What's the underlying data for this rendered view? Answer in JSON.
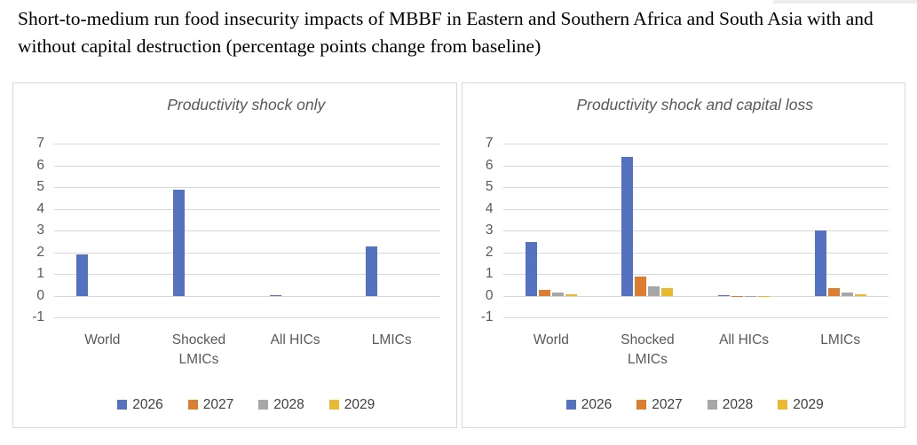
{
  "header": {
    "title": "Short-to-medium run food insecurity impacts of MBBF in Eastern and Southern Africa and South Asia with and without capital destruction (percentage points change from baseline)"
  },
  "colors": {
    "series_2026_blue": "#5572C1",
    "series_2027_orange": "#DD7D2F",
    "series_2028_gray": "#A7A7A7",
    "series_2029_yellow": "#E9B930",
    "gridline": "#D9D9D9",
    "axis_text": "#595959",
    "legend_text": "#404040",
    "panel_border": "#D9D9D9"
  },
  "chart_data": [
    {
      "type": "bar",
      "title": "Productivity shock only",
      "categories": [
        "World",
        "Shocked LMICs",
        "All HICs",
        "LMICs"
      ],
      "series": [
        {
          "name": "2026",
          "color": "#5572C1",
          "values": [
            1.9,
            4.9,
            0.05,
            2.3
          ]
        },
        {
          "name": "2027",
          "color": "#DD7D2F",
          "values": [
            0,
            0,
            0,
            0
          ]
        },
        {
          "name": "2028",
          "color": "#A7A7A7",
          "values": [
            0,
            0,
            0,
            0
          ]
        },
        {
          "name": "2029",
          "color": "#E9B930",
          "values": [
            0,
            0,
            0,
            0
          ]
        }
      ],
      "ylim": [
        -1,
        7
      ],
      "yticks": [
        7,
        6,
        5,
        4,
        3,
        2,
        1,
        0,
        -1
      ],
      "grid": true,
      "legend_position": "bottom"
    },
    {
      "type": "bar",
      "title": "Productivity shock and capital loss",
      "categories": [
        "World",
        "Shocked LMICs",
        "All HICs",
        "LMICs"
      ],
      "series": [
        {
          "name": "2026",
          "color": "#5572C1",
          "values": [
            2.5,
            6.4,
            0.05,
            3.0
          ]
        },
        {
          "name": "2027",
          "color": "#DD7D2F",
          "values": [
            0.3,
            0.9,
            -0.05,
            0.35
          ]
        },
        {
          "name": "2028",
          "color": "#A7A7A7",
          "values": [
            0.15,
            0.45,
            -0.05,
            0.15
          ]
        },
        {
          "name": "2029",
          "color": "#E9B930",
          "values": [
            0.08,
            0.35,
            -0.03,
            0.1
          ]
        }
      ],
      "ylim": [
        -1,
        7
      ],
      "yticks": [
        7,
        6,
        5,
        4,
        3,
        2,
        1,
        0,
        -1
      ],
      "grid": true,
      "legend_position": "bottom"
    }
  ]
}
